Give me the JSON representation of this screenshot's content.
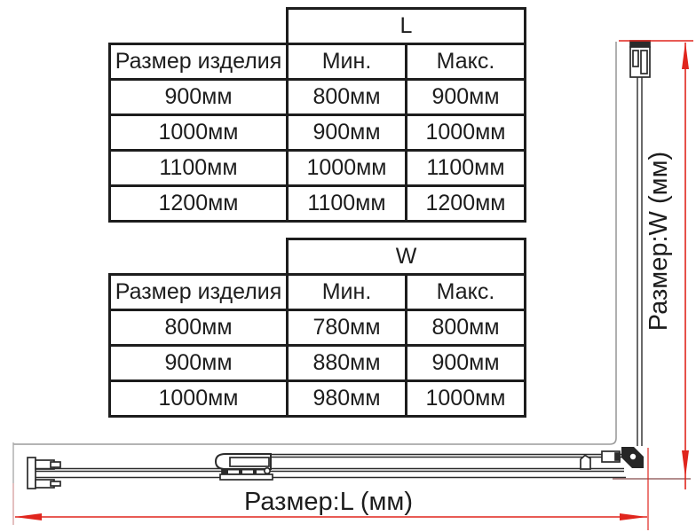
{
  "tables": [
    {
      "dimension": "L",
      "product_col": "Размер изделия",
      "min_col": "Мин.",
      "max_col": "Макс.",
      "rows": [
        [
          "900мм",
          "800мм",
          "900мм"
        ],
        [
          "1000мм",
          "900мм",
          "1000мм"
        ],
        [
          "1100мм",
          "1000мм",
          "1100мм"
        ],
        [
          "1200мм",
          "1100мм",
          "1200мм"
        ]
      ]
    },
    {
      "dimension": "W",
      "product_col": "Размер изделия",
      "min_col": "Мин.",
      "max_col": "Макс.",
      "rows": [
        [
          "800мм",
          "780мм",
          "800мм"
        ],
        [
          "900мм",
          "880мм",
          "900мм"
        ],
        [
          "1000мм",
          "980мм",
          "1000мм"
        ]
      ]
    }
  ],
  "diagram": {
    "length_label": "Размер:L (мм)",
    "width_label": "Размер:W (мм)",
    "colors": {
      "dimension_red": "#e0251d",
      "extension_pink": "#d8a4a4",
      "extension_maroon": "#9a6868",
      "drawing_black": "#2b2b2b",
      "glass_gray": "#9c9c9c",
      "table_ink": "#1d1d1d"
    }
  }
}
